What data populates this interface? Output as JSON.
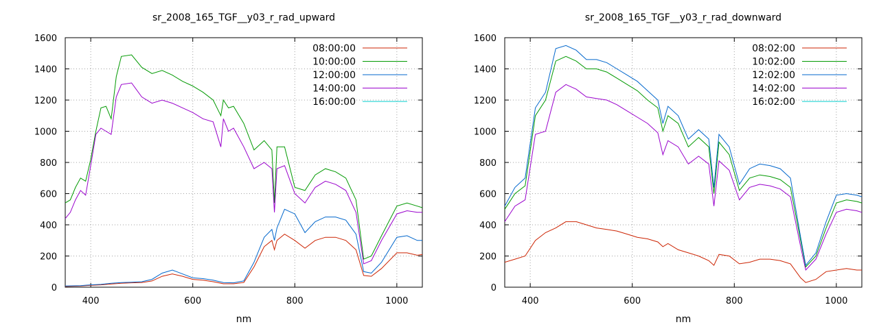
{
  "chart_data": [
    {
      "type": "line",
      "title": "sr_2008_165_TGF__y03_r_rad_upward",
      "xlabel": "nm",
      "ylabel": "",
      "xlim": [
        350,
        1050
      ],
      "ylim": [
        0,
        1600
      ],
      "xticks": [
        400,
        600,
        800,
        1000
      ],
      "yticks": [
        0,
        200,
        400,
        600,
        800,
        1000,
        1200,
        1400,
        1600
      ],
      "grid": true,
      "legend_position": "top-right",
      "series": [
        {
          "name": "08:00:00",
          "color": "#cc2200",
          "x": [
            350,
            380,
            400,
            420,
            440,
            460,
            480,
            500,
            520,
            540,
            560,
            580,
            600,
            620,
            640,
            660,
            680,
            700,
            720,
            740,
            755,
            760,
            765,
            780,
            800,
            820,
            840,
            860,
            880,
            900,
            920,
            935,
            950,
            970,
            1000,
            1020,
            1040,
            1050
          ],
          "y": [
            5,
            8,
            12,
            15,
            20,
            25,
            28,
            30,
            40,
            70,
            85,
            70,
            50,
            45,
            35,
            22,
            22,
            30,
            130,
            260,
            300,
            240,
            300,
            340,
            300,
            250,
            300,
            320,
            320,
            300,
            240,
            75,
            70,
            120,
            220,
            220,
            205,
            210
          ]
        },
        {
          "name": "10:00:00",
          "color": "#009900",
          "x": [
            350,
            360,
            370,
            380,
            390,
            400,
            410,
            420,
            430,
            440,
            450,
            460,
            480,
            500,
            520,
            540,
            560,
            580,
            600,
            620,
            640,
            655,
            660,
            670,
            680,
            700,
            720,
            740,
            755,
            760,
            765,
            780,
            800,
            820,
            840,
            860,
            880,
            900,
            920,
            935,
            950,
            970,
            1000,
            1020,
            1040,
            1050
          ],
          "y": [
            540,
            560,
            640,
            700,
            680,
            820,
            1000,
            1150,
            1160,
            1080,
            1350,
            1480,
            1490,
            1410,
            1370,
            1390,
            1360,
            1320,
            1290,
            1250,
            1200,
            1100,
            1200,
            1150,
            1160,
            1050,
            880,
            940,
            880,
            540,
            900,
            900,
            640,
            620,
            720,
            760,
            740,
            700,
            560,
            180,
            200,
            330,
            520,
            540,
            520,
            510
          ]
        },
        {
          "name": "12:00:00",
          "color": "#0066cc",
          "x": [
            350,
            380,
            400,
            420,
            440,
            460,
            480,
            500,
            520,
            540,
            560,
            580,
            600,
            620,
            640,
            660,
            680,
            700,
            720,
            740,
            755,
            760,
            765,
            780,
            800,
            820,
            840,
            860,
            880,
            900,
            920,
            935,
            950,
            970,
            1000,
            1020,
            1040,
            1050
          ],
          "y": [
            8,
            10,
            15,
            18,
            25,
            30,
            32,
            35,
            50,
            90,
            110,
            85,
            60,
            55,
            45,
            30,
            28,
            40,
            160,
            320,
            370,
            300,
            380,
            500,
            470,
            350,
            420,
            450,
            450,
            430,
            340,
            100,
            90,
            160,
            320,
            330,
            300,
            300
          ]
        },
        {
          "name": "14:00:00",
          "color": "#9900cc",
          "x": [
            350,
            360,
            370,
            380,
            390,
            400,
            410,
            420,
            430,
            440,
            450,
            460,
            480,
            500,
            520,
            540,
            560,
            580,
            600,
            620,
            640,
            655,
            660,
            670,
            680,
            700,
            720,
            740,
            755,
            760,
            765,
            780,
            800,
            820,
            840,
            860,
            880,
            900,
            920,
            935,
            950,
            970,
            1000,
            1020,
            1040,
            1050
          ],
          "y": [
            440,
            480,
            560,
            620,
            590,
            780,
            980,
            1020,
            1000,
            980,
            1220,
            1300,
            1310,
            1220,
            1180,
            1200,
            1180,
            1150,
            1120,
            1080,
            1060,
            900,
            1080,
            1000,
            1020,
            900,
            760,
            800,
            760,
            480,
            760,
            780,
            600,
            540,
            640,
            680,
            660,
            620,
            480,
            150,
            170,
            300,
            470,
            490,
            480,
            480
          ]
        },
        {
          "name": "16:00:00",
          "color": "#00cccc",
          "x": [
            350,
            1050
          ],
          "y": [
            null,
            null
          ]
        }
      ]
    },
    {
      "type": "line",
      "title": "sr_2008_165_TGF__y03_r_rad_downward",
      "xlabel": "nm",
      "ylabel": "",
      "xlim": [
        350,
        1050
      ],
      "ylim": [
        0,
        1600
      ],
      "xticks": [
        400,
        600,
        800,
        1000
      ],
      "yticks": [
        0,
        200,
        400,
        600,
        800,
        1000,
        1200,
        1400,
        1600
      ],
      "grid": true,
      "legend_position": "top-right",
      "series": [
        {
          "name": "08:02:00",
          "color": "#cc2200",
          "x": [
            350,
            370,
            390,
            410,
            430,
            450,
            470,
            490,
            510,
            530,
            550,
            570,
            590,
            610,
            630,
            650,
            660,
            670,
            690,
            710,
            730,
            750,
            760,
            770,
            790,
            810,
            830,
            850,
            870,
            890,
            910,
            930,
            940,
            960,
            980,
            1000,
            1020,
            1040,
            1050
          ],
          "y": [
            160,
            180,
            200,
            300,
            350,
            380,
            420,
            420,
            400,
            380,
            370,
            360,
            340,
            320,
            310,
            290,
            260,
            280,
            240,
            220,
            200,
            170,
            140,
            210,
            200,
            150,
            160,
            180,
            180,
            170,
            150,
            60,
            30,
            50,
            100,
            110,
            120,
            110,
            110
          ]
        },
        {
          "name": "10:02:00",
          "color": "#009900",
          "x": [
            350,
            370,
            390,
            410,
            430,
            450,
            470,
            490,
            510,
            530,
            550,
            570,
            590,
            610,
            630,
            650,
            660,
            670,
            690,
            710,
            730,
            750,
            760,
            770,
            790,
            810,
            830,
            850,
            870,
            890,
            910,
            930,
            940,
            960,
            980,
            1000,
            1020,
            1040,
            1050
          ],
          "y": [
            500,
            600,
            650,
            1100,
            1200,
            1450,
            1480,
            1450,
            1400,
            1400,
            1380,
            1340,
            1300,
            1260,
            1200,
            1150,
            1000,
            1100,
            1050,
            900,
            960,
            900,
            600,
            930,
            850,
            620,
            700,
            720,
            710,
            690,
            640,
            300,
            130,
            200,
            380,
            540,
            560,
            550,
            540
          ]
        },
        {
          "name": "12:02:00",
          "color": "#0066cc",
          "x": [
            350,
            370,
            390,
            410,
            430,
            450,
            470,
            490,
            510,
            530,
            550,
            570,
            590,
            610,
            630,
            650,
            660,
            670,
            690,
            710,
            730,
            750,
            760,
            770,
            790,
            810,
            830,
            850,
            870,
            890,
            910,
            930,
            940,
            960,
            980,
            1000,
            1020,
            1040,
            1050
          ],
          "y": [
            520,
            640,
            700,
            1150,
            1250,
            1530,
            1550,
            1520,
            1460,
            1460,
            1440,
            1400,
            1360,
            1320,
            1260,
            1200,
            1050,
            1160,
            1100,
            950,
            1010,
            950,
            640,
            980,
            900,
            660,
            760,
            790,
            780,
            760,
            700,
            320,
            140,
            220,
            420,
            590,
            600,
            590,
            580
          ]
        },
        {
          "name": "14:02:00",
          "color": "#9900cc",
          "x": [
            350,
            370,
            390,
            410,
            430,
            450,
            470,
            490,
            510,
            530,
            550,
            570,
            590,
            610,
            630,
            650,
            660,
            670,
            690,
            710,
            730,
            750,
            760,
            770,
            790,
            810,
            830,
            850,
            870,
            890,
            910,
            930,
            940,
            960,
            980,
            1000,
            1020,
            1040,
            1050
          ],
          "y": [
            420,
            520,
            560,
            980,
            1000,
            1250,
            1300,
            1270,
            1220,
            1210,
            1200,
            1170,
            1130,
            1090,
            1050,
            990,
            850,
            940,
            900,
            790,
            840,
            790,
            520,
            810,
            750,
            560,
            640,
            660,
            650,
            630,
            580,
            260,
            110,
            180,
            340,
            480,
            500,
            490,
            480
          ]
        },
        {
          "name": "16:02:00",
          "color": "#00cccc",
          "x": [
            350,
            1050
          ],
          "y": [
            null,
            null
          ]
        }
      ]
    }
  ]
}
